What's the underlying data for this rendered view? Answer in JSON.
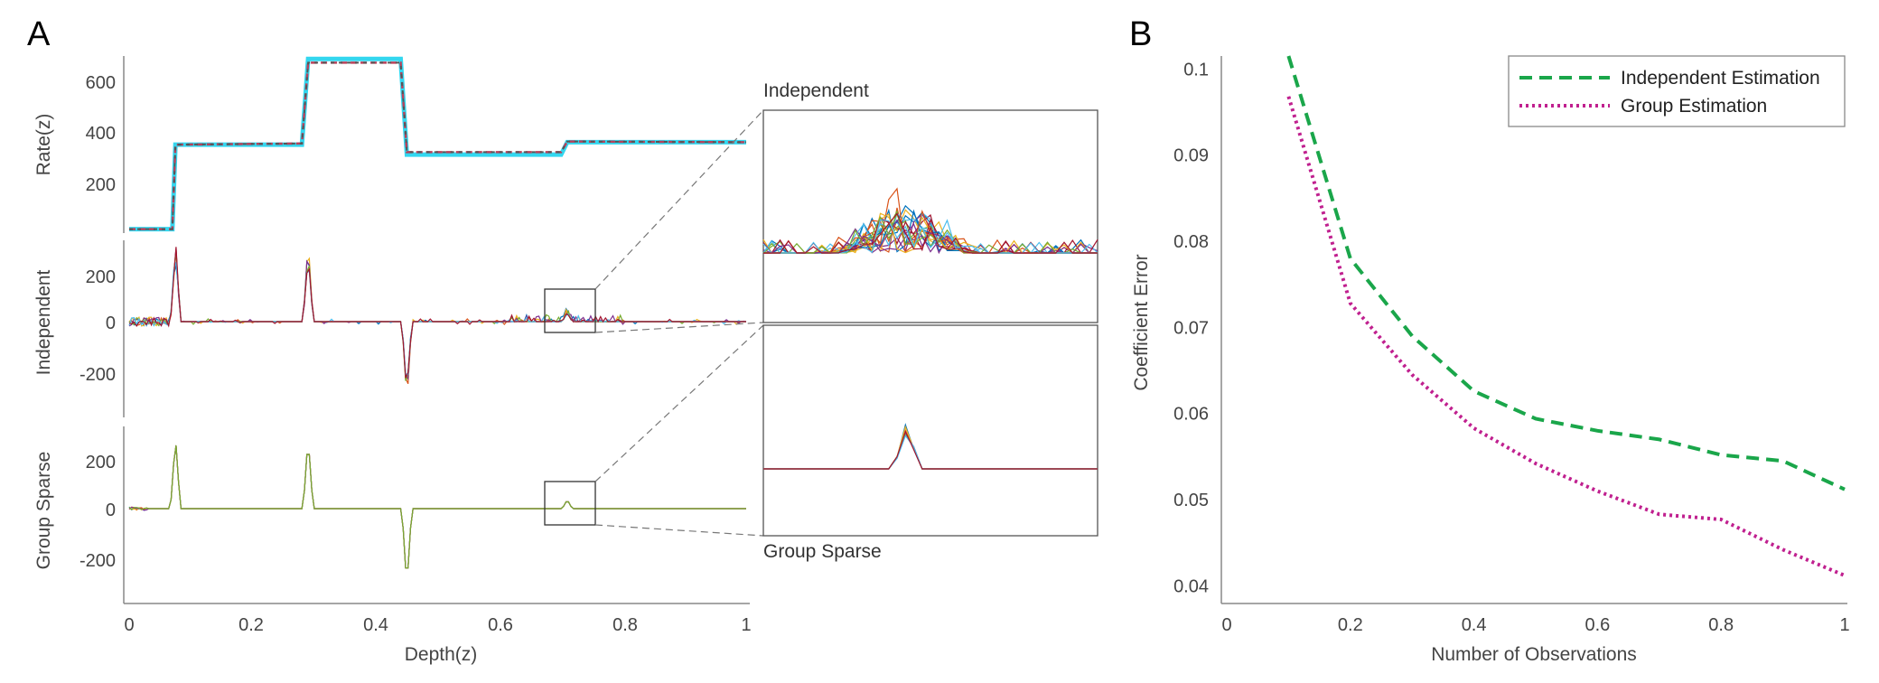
{
  "panels": {
    "A": {
      "letter": "A",
      "x_label": "Depth(z)",
      "x_ticks": [
        "0",
        "0.2",
        "0.4",
        "0.6",
        "0.8",
        "1"
      ],
      "rate": {
        "ylabel": "Rate(z)",
        "y_ticks": [
          "200",
          "400",
          "600"
        ]
      },
      "independent": {
        "ylabel": "Independent",
        "y_ticks": [
          "200",
          "0",
          "-200"
        ]
      },
      "group_sparse": {
        "ylabel": "Group Sparse",
        "y_ticks": [
          "200",
          "0",
          "-200"
        ]
      },
      "insets": {
        "top_title": "Independent",
        "bottom_title": "Group Sparse"
      }
    },
    "B": {
      "letter": "B",
      "x_label": "Number of Observations",
      "y_label": "Coefficient Error",
      "x_ticks": [
        "0",
        "0.2",
        "0.4",
        "0.6",
        "0.8",
        "1"
      ],
      "y_ticks": [
        "0.1",
        "0.09",
        "0.08",
        "0.07",
        "0.06",
        "0.05",
        "0.04"
      ],
      "legend": [
        "Independent Estimation",
        "Group Estimation"
      ]
    }
  },
  "colors": {
    "independent_estimation": "#1aa64a",
    "group_estimation": "#c0208f",
    "true_rate": "#33d7ef",
    "estimate_rate": "#b8405a",
    "trace_palette": [
      "#0072bd",
      "#d95319",
      "#edb120",
      "#7e2f8e",
      "#77ac30",
      "#4dbeee",
      "#a2142f"
    ]
  },
  "chart_data": [
    {
      "type": "line",
      "panel": "A-top",
      "ylabel": "Rate(z)",
      "xlim": [
        0,
        1
      ],
      "ylim": [
        0,
        700
      ],
      "series": [
        {
          "x": [
            0,
            0.07,
            0.075,
            0.28,
            0.29,
            0.44,
            0.45,
            0.7,
            0.71,
            1
          ],
          "y": [
            5,
            5,
            345,
            345,
            690,
            690,
            305,
            305,
            355,
            355
          ]
        },
        {
          "x": [
            0,
            0.07,
            0.075,
            0.28,
            0.29,
            0.44,
            0.45,
            0.7,
            0.71,
            1
          ],
          "y": [
            5,
            5,
            345,
            350,
            675,
            675,
            315,
            315,
            358,
            355
          ]
        }
      ]
    },
    {
      "type": "line",
      "panel": "A-middle",
      "ylabel": "Independent",
      "xlim": [
        0,
        1
      ],
      "ylim": [
        -350,
        350
      ],
      "spikes": [
        {
          "x": 0.075,
          "y": 330
        },
        {
          "x": 0.29,
          "y": 330
        },
        {
          "x": 0.45,
          "y": -340
        },
        {
          "x": 0.71,
          "y": 40
        }
      ]
    },
    {
      "type": "line",
      "panel": "A-bottom",
      "ylabel": "Group Sparse",
      "xlim": [
        0,
        1
      ],
      "ylim": [
        -350,
        350
      ],
      "spikes": [
        {
          "x": 0.075,
          "y": 320
        },
        {
          "x": 0.29,
          "y": 320
        },
        {
          "x": 0.45,
          "y": -350
        },
        {
          "x": 0.71,
          "y": 40
        }
      ]
    },
    {
      "type": "line",
      "panel": "B",
      "xlabel": "Number of Observations",
      "ylabel": "Coefficient Error",
      "xlim": [
        0,
        1
      ],
      "ylim": [
        0.039,
        0.1015
      ],
      "series": [
        {
          "name": "Independent Estimation",
          "x": [
            0.1,
            0.2,
            0.3,
            0.4,
            0.5,
            0.6,
            0.7,
            0.8,
            0.9,
            1.0
          ],
          "y": [
            0.1015,
            0.078,
            0.069,
            0.0626,
            0.0594,
            0.058,
            0.057,
            0.0552,
            0.0545,
            0.0512
          ]
        },
        {
          "name": "Group Estimation",
          "x": [
            0.1,
            0.2,
            0.3,
            0.4,
            0.5,
            0.6,
            0.7,
            0.8,
            0.9,
            1.0
          ],
          "y": [
            0.0968,
            0.0728,
            0.0645,
            0.0583,
            0.0542,
            0.051,
            0.0483,
            0.0477,
            0.0442,
            0.0412
          ]
        }
      ]
    }
  ]
}
